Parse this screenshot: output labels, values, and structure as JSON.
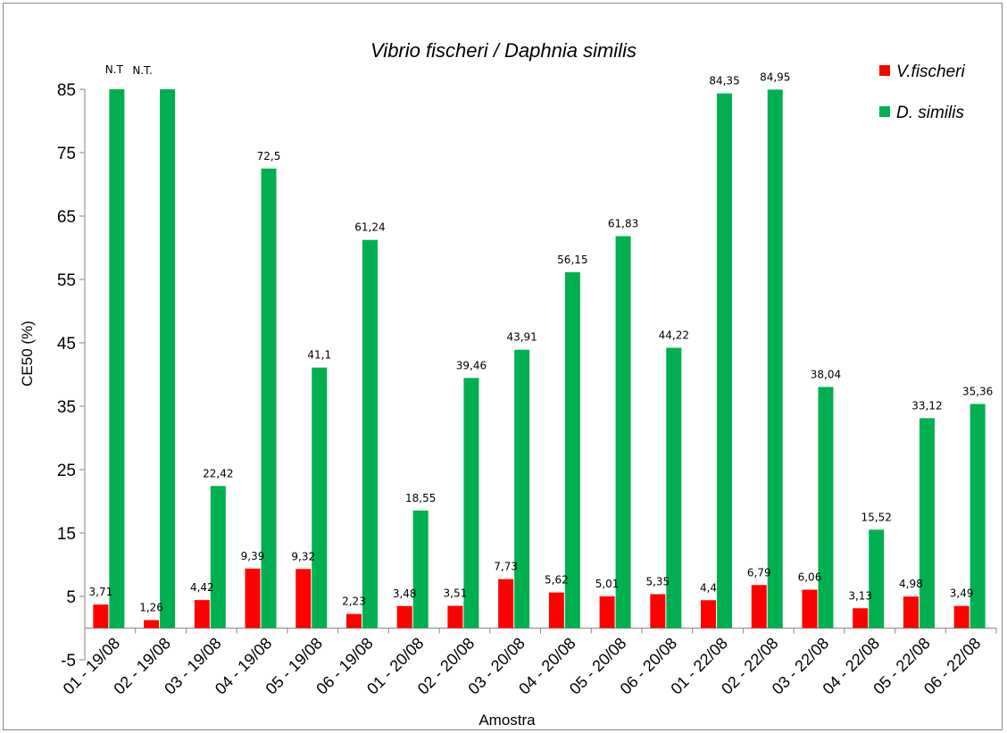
{
  "chart_data": {
    "type": "bar",
    "title": "Vibrio fischeri / Daphnia similis",
    "xlabel": "Amostra",
    "ylabel": "CE50 (%)",
    "ylim": [
      -5,
      85
    ],
    "yticks": [
      -5,
      5,
      15,
      25,
      35,
      45,
      55,
      65,
      75,
      85
    ],
    "grid": false,
    "legend_position": "top-right",
    "categories": [
      "01 - 19/08",
      "02 - 19/08",
      "03 - 19/08",
      "04 - 19/08",
      "05 - 19/08",
      "06 - 19/08",
      "01 - 20/08",
      "02 - 20/08",
      "03 - 20/08",
      "04 - 20/08",
      "05 - 20/08",
      "06 - 20/08",
      "01 - 22/08",
      "02 - 22/08",
      "03 - 22/08",
      "04 - 22/08",
      "05 - 22/08",
      "06 - 22/08"
    ],
    "series": [
      {
        "name": "V.fischeri",
        "color": "#ff0000",
        "values": [
          3.71,
          1.26,
          4.42,
          9.39,
          9.32,
          2.23,
          3.48,
          3.51,
          7.73,
          5.62,
          5.01,
          5.35,
          4.4,
          6.79,
          6.06,
          3.13,
          4.98,
          3.49
        ],
        "labels": [
          "3,71",
          "1,26",
          "4,42",
          "9,39",
          "9,32",
          "2,23",
          "3,48",
          "3,51",
          "7,73",
          "5,62",
          "5,01",
          "5,35",
          "4,4",
          "6,79",
          "6,06",
          "3,13",
          "4,98",
          "3,49"
        ]
      },
      {
        "name": "D. similis",
        "color": "#00b050",
        "values": [
          85,
          85,
          22.42,
          72.5,
          41.1,
          61.24,
          18.55,
          39.46,
          43.91,
          56.15,
          61.83,
          44.22,
          84.35,
          84.95,
          38.04,
          15.52,
          33.12,
          35.36
        ],
        "labels": [
          "N.T",
          "N.T.",
          "22,42",
          "72,5",
          "41,1",
          "61,24",
          "18,55",
          "39,46",
          "43,91",
          "56,15",
          "61,83",
          "44,22",
          "84,35",
          "84,95",
          "38,04",
          "15,52",
          "33,12",
          "35,36"
        ]
      }
    ]
  }
}
